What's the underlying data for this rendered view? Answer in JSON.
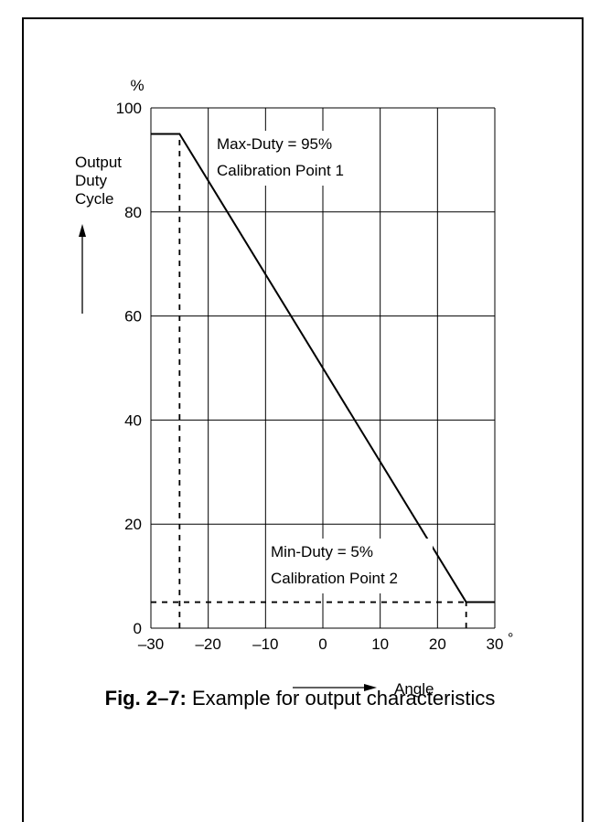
{
  "caption": {
    "label": "Fig. 2–7:",
    "text": " Example for output characteristics"
  },
  "chart_data": {
    "type": "line",
    "xlabel": "Angle",
    "x_unit": "°",
    "ylabel": [
      "Output",
      "Duty",
      "Cycle"
    ],
    "y_unit": "%",
    "xlim": [
      -30,
      30
    ],
    "ylim": [
      0,
      100
    ],
    "xticks": [
      -30,
      -20,
      -10,
      0,
      10,
      20,
      30
    ],
    "xtick_labels": [
      "–30",
      "–20",
      "–10",
      "0",
      "10",
      "20",
      "30"
    ],
    "yticks": [
      0,
      20,
      40,
      60,
      80,
      100
    ],
    "ytick_labels": [
      "0",
      "20",
      "40",
      "60",
      "80",
      "100"
    ],
    "grid": true,
    "series": [
      {
        "x": [
          -30,
          -25,
          25,
          30
        ],
        "y": [
          95,
          95,
          5,
          5
        ]
      }
    ],
    "reference_lines": [
      {
        "from": [
          -25,
          0
        ],
        "to": [
          -25,
          95
        ],
        "style": "dashed"
      },
      {
        "from": [
          -30,
          5
        ],
        "to": [
          25,
          5
        ],
        "style": "dashed"
      },
      {
        "from": [
          25,
          0
        ],
        "to": [
          25,
          5
        ],
        "style": "dashed"
      }
    ],
    "annotations": [
      {
        "lines": [
          "Max-Duty = 95%",
          "Calibration Point 1"
        ],
        "near": [
          -25,
          95
        ]
      },
      {
        "lines": [
          "Min-Duty = 5%",
          "Calibration Point 2"
        ],
        "near": [
          25,
          5
        ]
      }
    ]
  }
}
